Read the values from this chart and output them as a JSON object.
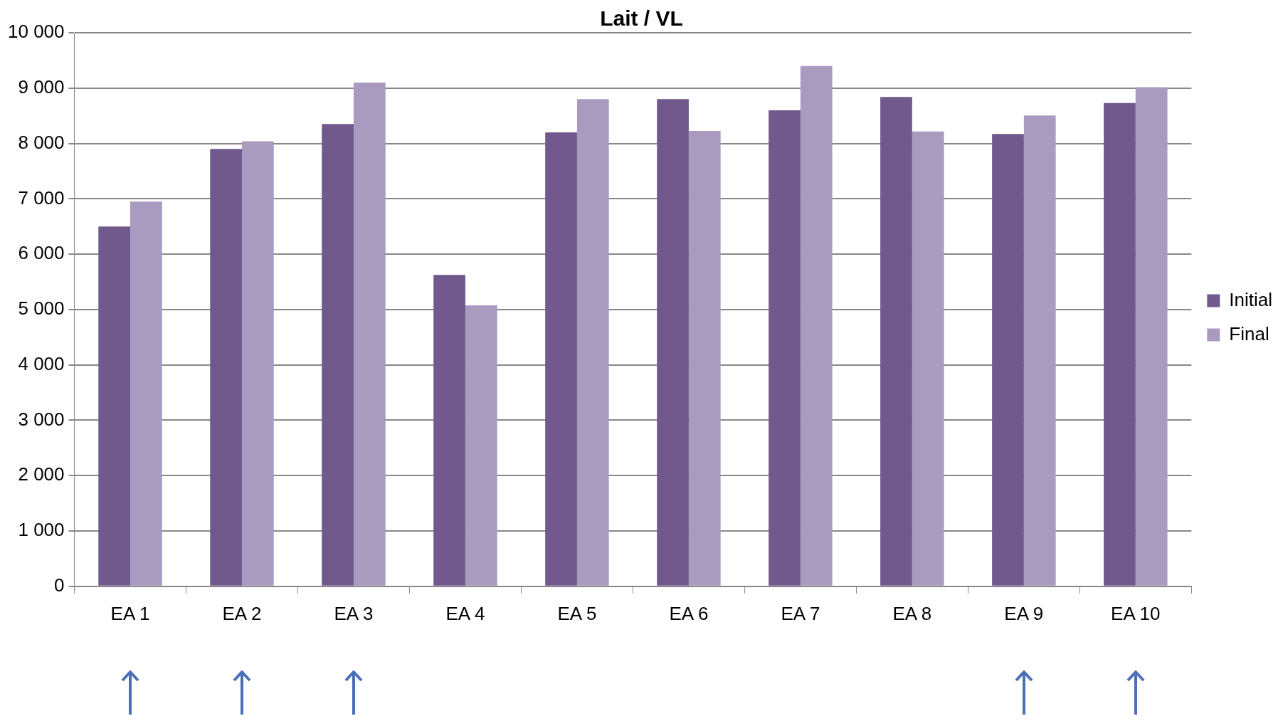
{
  "chart_data": {
    "type": "bar",
    "title": "Lait / VL",
    "categories": [
      "EA 1",
      "EA 2",
      "EA 3",
      "EA 4",
      "EA 5",
      "EA 6",
      "EA 7",
      "EA 8",
      "EA 9",
      "EA 10"
    ],
    "series": [
      {
        "name": "Initial",
        "color": "#71598e",
        "values": [
          6500,
          7900,
          8350,
          5625,
          8200,
          8800,
          8600,
          8840,
          8170,
          8730
        ]
      },
      {
        "name": "Final",
        "color": "#a99bbf",
        "values": [
          6950,
          8040,
          9100,
          5075,
          8800,
          8225,
          9400,
          8215,
          8505,
          9015
        ]
      }
    ],
    "ylim": [
      0,
      10000
    ],
    "yticks": [
      {
        "value": 0,
        "label": "0"
      },
      {
        "value": 1000,
        "label": "1 000"
      },
      {
        "value": 2000,
        "label": "2 000"
      },
      {
        "value": 3000,
        "label": "3 000"
      },
      {
        "value": 4000,
        "label": "4 000"
      },
      {
        "value": 5000,
        "label": "5 000"
      },
      {
        "value": 6000,
        "label": "6 000"
      },
      {
        "value": 7000,
        "label": "7 000"
      },
      {
        "value": 8000,
        "label": "8 000"
      },
      {
        "value": 9000,
        "label": "9 000"
      },
      {
        "value": 10000,
        "label": "10 000"
      }
    ],
    "grid": "y",
    "legend": "right"
  }
}
